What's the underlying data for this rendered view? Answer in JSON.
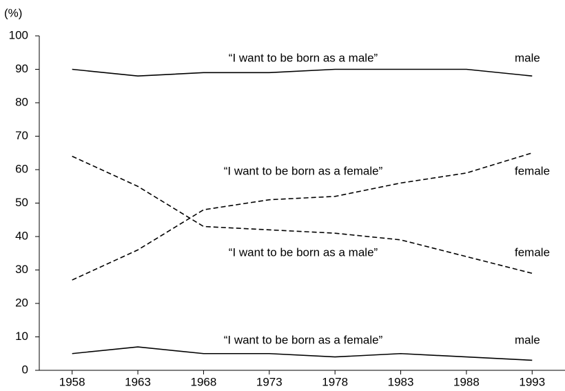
{
  "chart_data": {
    "type": "line",
    "y_label": "(%)",
    "categories": [
      "1958",
      "1963",
      "1968",
      "1973",
      "1978",
      "1983",
      "1988",
      "1993"
    ],
    "ylim": [
      0,
      100
    ],
    "yticks": [
      0,
      10,
      20,
      30,
      40,
      50,
      60,
      70,
      80,
      90,
      100
    ],
    "series": [
      {
        "name": "“I want to be born as a male”",
        "group": "male",
        "color": "#000000",
        "dashed": false,
        "values": [
          90,
          88,
          89,
          89,
          90,
          90,
          90,
          88
        ]
      },
      {
        "name": "“I want to be born as a female”",
        "group": "female",
        "color": "#000000",
        "dashed": true,
        "values": [
          27,
          36,
          48,
          51,
          52,
          56,
          59,
          65
        ]
      },
      {
        "name": "“I want to be born as a male”",
        "group": "female",
        "color": "#000000",
        "dashed": true,
        "values": [
          64,
          55,
          43,
          42,
          41,
          39,
          34,
          29
        ]
      },
      {
        "name": "“I want to be born as a female”",
        "group": "male",
        "color": "#000000",
        "dashed": false,
        "values": [
          5,
          7,
          5,
          5,
          4,
          5,
          4,
          3
        ]
      }
    ]
  }
}
